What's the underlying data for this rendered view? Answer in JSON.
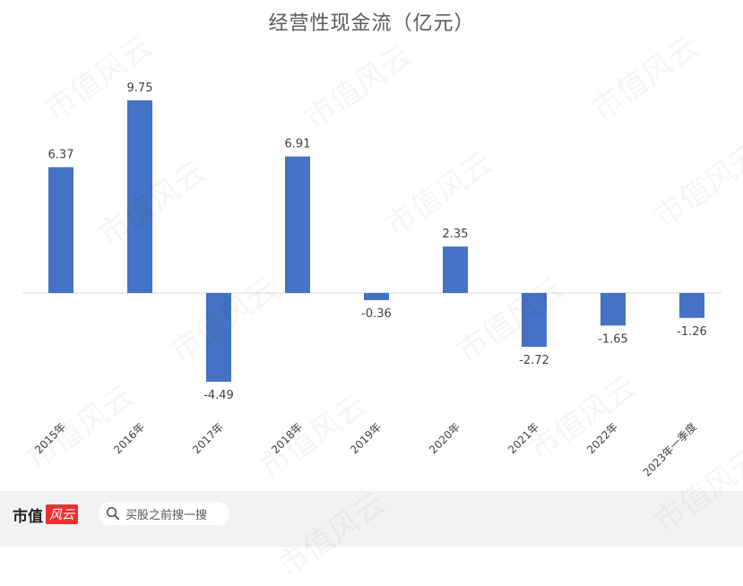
{
  "chart_data": {
    "type": "bar",
    "title": "经营性现金流（亿元）",
    "categories": [
      "2015年",
      "2016年",
      "2017年",
      "2018年",
      "2019年",
      "2020年",
      "2021年",
      "2022年",
      "2023年一季度"
    ],
    "values": [
      6.37,
      9.75,
      -4.49,
      6.91,
      -0.36,
      2.35,
      -2.72,
      -1.65,
      -1.26
    ],
    "value_labels": [
      "6.37",
      "9.75",
      "-4.49",
      "6.91",
      "-0.36",
      "2.35",
      "-2.72",
      "-1.65",
      "-1.26"
    ],
    "bar_color": "#4472c4",
    "grid": false,
    "legend": "none"
  },
  "footer": {
    "brand": "市值",
    "brand_badge": "风云",
    "search_placeholder": "买股之前搜一搜"
  },
  "watermark_text": "市值风云",
  "colors": {
    "bar": "#4472c4",
    "axis": "#d9d9d9",
    "label": "#404040",
    "brand_red": "#e8322f"
  }
}
